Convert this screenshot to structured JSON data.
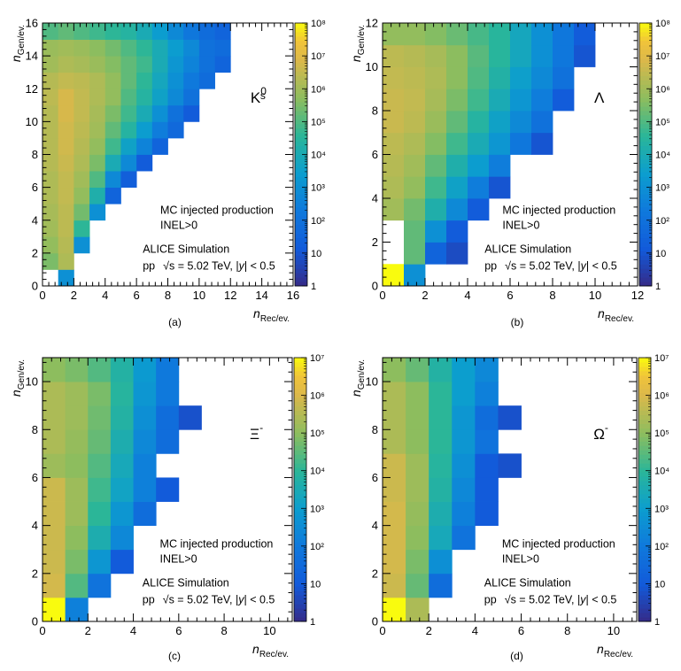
{
  "figure": {
    "common": {
      "annotation_line1": "MC injected production",
      "annotation_line2": "INEL>0",
      "collaboration": "ALICE Simulation",
      "system": "pp",
      "energy_text": "= 5.02 TeV, |",
      "y_symbol": "y",
      "rapidity_text": "| < 0.5",
      "sqrt_s_symbol": "√s",
      "xlabel_main": "n",
      "xlabel_sub": "Rec/ev.",
      "ylabel_main": "n",
      "ylabel_sub": "Gen/ev."
    }
  },
  "chart_data": [
    {
      "type": "heatmap",
      "panel_label": "(a)",
      "particle_main": "K",
      "particle_sub": "s",
      "particle_sup": "0",
      "xlim": [
        0,
        16
      ],
      "ylim": [
        0,
        16
      ],
      "xticks": [
        0,
        2,
        4,
        6,
        8,
        10,
        12,
        14,
        16
      ],
      "yticks": [
        0,
        2,
        4,
        6,
        8,
        10,
        12,
        14,
        16
      ],
      "zlim_exp": [
        0,
        8
      ],
      "zticks": [
        "1",
        "10",
        "10²",
        "10³",
        "10⁴",
        "10⁵",
        "10⁶",
        "10⁷",
        "10⁸"
      ],
      "rows": [
        {
          "y": 0,
          "x0": 1,
          "logz": [
            3.0
          ]
        },
        {
          "y": 1,
          "x0": 0,
          "logz": [
            5.5,
            6.2
          ]
        },
        {
          "y": 2,
          "x0": 0,
          "logz": [
            5.8,
            6.3,
            3.0
          ]
        },
        {
          "y": 3,
          "x0": 0,
          "logz": [
            6.0,
            6.4,
            4.6
          ]
        },
        {
          "y": 4,
          "x0": 0,
          "logz": [
            6.1,
            6.4,
            5.4,
            3.0
          ]
        },
        {
          "y": 5,
          "x0": 0,
          "logz": [
            6.2,
            6.5,
            5.8,
            4.2,
            1.5
          ]
        },
        {
          "y": 6,
          "x0": 0,
          "logz": [
            6.2,
            6.5,
            6.0,
            5.0,
            2.8,
            1.3
          ]
        },
        {
          "y": 7,
          "x0": 0,
          "logz": [
            6.3,
            6.6,
            6.2,
            5.5,
            4.0,
            2.8,
            1.2
          ]
        },
        {
          "y": 8,
          "x0": 0,
          "logz": [
            6.3,
            6.7,
            6.3,
            5.8,
            4.8,
            3.6,
            2.6,
            1.5
          ]
        },
        {
          "y": 9,
          "x0": 0,
          "logz": [
            6.3,
            6.7,
            6.4,
            6.0,
            5.2,
            4.4,
            3.4,
            2.4,
            1.7
          ]
        },
        {
          "y": 10,
          "x0": 0,
          "logz": [
            6.3,
            6.8,
            6.5,
            6.1,
            5.5,
            4.8,
            4.0,
            3.0,
            2.0,
            1.2
          ]
        },
        {
          "y": 11,
          "x0": 0,
          "logz": [
            6.4,
            6.8,
            6.5,
            6.2,
            5.8,
            5.0,
            4.4,
            3.6,
            2.8,
            2.0
          ]
        },
        {
          "y": 12,
          "x0": 0,
          "logz": [
            6.3,
            6.5,
            6.4,
            6.2,
            5.8,
            5.2,
            4.6,
            3.8,
            3.0,
            2.3,
            1.8
          ]
        },
        {
          "y": 13,
          "x0": 0,
          "logz": [
            6.0,
            6.2,
            6.1,
            5.9,
            5.6,
            5.2,
            4.8,
            4.0,
            3.2,
            2.6,
            2.0,
            1.5
          ]
        },
        {
          "y": 14,
          "x0": 0,
          "logz": [
            5.9,
            6.0,
            5.9,
            5.7,
            5.4,
            5.0,
            4.6,
            4.0,
            3.4,
            2.8,
            2.0,
            1.8
          ]
        },
        {
          "y": 15,
          "x0": 0,
          "logz": [
            5.0,
            5.2,
            5.0,
            4.8,
            4.6,
            4.4,
            4.0,
            3.4,
            2.8,
            2.2,
            1.8,
            1.5
          ]
        }
      ]
    },
    {
      "type": "heatmap",
      "panel_label": "(b)",
      "particle_main": "Λ",
      "particle_sub": "",
      "particle_sup": "",
      "xlim": [
        0,
        12
      ],
      "ylim": [
        0,
        12
      ],
      "xticks": [
        0,
        2,
        4,
        6,
        8,
        10,
        12
      ],
      "yticks": [
        0,
        2,
        4,
        6,
        8,
        10,
        12
      ],
      "zlim_exp": [
        0,
        8
      ],
      "zticks": [
        "1",
        "10",
        "10²",
        "10³",
        "10⁴",
        "10⁵",
        "10⁶",
        "10⁷",
        "10⁸"
      ],
      "rows": [
        {
          "y": 0,
          "x0": 0,
          "logz": [
            8.0,
            3.0
          ]
        },
        {
          "y": 1,
          "x0": 1,
          "logz": [
            5.2,
            1.5,
            0.8
          ]
        },
        {
          "y": 2,
          "x0": 1,
          "logz": [
            5.2,
            3.0,
            1.2
          ]
        },
        {
          "y": 3,
          "x0": 0,
          "logz": [
            6.0,
            5.4,
            4.2,
            2.8,
            1.2
          ]
        },
        {
          "y": 4,
          "x0": 0,
          "logz": [
            6.2,
            5.8,
            4.8,
            3.6,
            2.4,
            1.0
          ]
        },
        {
          "y": 5,
          "x0": 0,
          "logz": [
            6.3,
            6.0,
            5.2,
            4.2,
            3.4,
            2.4
          ]
        },
        {
          "y": 6,
          "x0": 0,
          "logz": [
            6.4,
            6.2,
            5.6,
            4.8,
            4.0,
            3.2,
            2.2,
            1.0
          ]
        },
        {
          "y": 7,
          "x0": 0,
          "logz": [
            6.6,
            6.4,
            5.9,
            5.2,
            4.4,
            3.6,
            2.8,
            2.0
          ]
        },
        {
          "y": 8,
          "x0": 0,
          "logz": [
            6.6,
            6.5,
            6.1,
            5.5,
            4.8,
            4.0,
            3.2,
            2.4,
            1.2
          ]
        },
        {
          "y": 9,
          "x0": 0,
          "logz": [
            6.5,
            6.4,
            6.2,
            5.7,
            5.0,
            4.3,
            3.5,
            2.8,
            2.0
          ]
        },
        {
          "y": 10,
          "x0": 0,
          "logz": [
            6.4,
            6.3,
            6.1,
            5.7,
            5.1,
            4.5,
            3.8,
            3.0,
            2.2,
            1.0
          ]
        },
        {
          "y": 11,
          "x0": 0,
          "logz": [
            5.8,
            5.8,
            5.6,
            5.3,
            4.9,
            4.5,
            3.8,
            3.0,
            2.2,
            1.2
          ]
        }
      ]
    },
    {
      "type": "heatmap",
      "panel_label": "(c)",
      "particle_main": "Ξ",
      "particle_sub": "",
      "particle_sup": "-",
      "xlim": [
        0,
        11
      ],
      "ylim": [
        0,
        11
      ],
      "xticks": [
        0,
        2,
        4,
        6,
        8,
        10
      ],
      "yticks": [
        0,
        2,
        4,
        6,
        8,
        10
      ],
      "zlim_exp": [
        0,
        7
      ],
      "zticks": [
        "1",
        "10",
        "10²",
        "10³",
        "10⁴",
        "10⁵",
        "10⁶",
        "10⁷"
      ],
      "rows": [
        {
          "y": 0,
          "x0": 0,
          "logz": [
            7.0,
            2.2
          ]
        },
        {
          "y": 1,
          "x0": 0,
          "logz": [
            5.9,
            4.4,
            1.8
          ]
        },
        {
          "y": 2,
          "x0": 0,
          "logz": [
            5.8,
            4.8,
            2.8,
            1.0
          ]
        },
        {
          "y": 3,
          "x0": 0,
          "logz": [
            5.8,
            5.0,
            3.6,
            2.4
          ]
        },
        {
          "y": 4,
          "x0": 0,
          "logz": [
            5.8,
            5.2,
            4.0,
            2.8,
            1.6
          ]
        },
        {
          "y": 5,
          "x0": 0,
          "logz": [
            5.8,
            5.2,
            4.2,
            3.2,
            2.2,
            1.0
          ]
        },
        {
          "y": 6,
          "x0": 0,
          "logz": [
            5.2,
            5.0,
            4.4,
            3.4,
            2.2
          ]
        },
        {
          "y": 7,
          "x0": 0,
          "logz": [
            5.4,
            5.1,
            4.6,
            3.6,
            2.4,
            1.6
          ]
        },
        {
          "y": 8,
          "x0": 0,
          "logz": [
            5.4,
            5.2,
            4.7,
            3.8,
            2.6,
            1.6,
            0.8
          ]
        },
        {
          "y": 9,
          "x0": 0,
          "logz": [
            5.4,
            5.2,
            4.8,
            3.9,
            2.8,
            2.0
          ]
        },
        {
          "y": 10,
          "x0": 0,
          "logz": [
            5.0,
            4.8,
            4.4,
            3.8,
            2.9,
            2.0
          ]
        }
      ]
    },
    {
      "type": "heatmap",
      "panel_label": "(d)",
      "particle_main": "Ω",
      "particle_sub": "",
      "particle_sup": "-",
      "xlim": [
        0,
        11
      ],
      "ylim": [
        0,
        11
      ],
      "xticks": [
        0,
        2,
        4,
        6,
        8,
        10
      ],
      "yticks": [
        0,
        2,
        4,
        6,
        8,
        10
      ],
      "zlim_exp": [
        0,
        7
      ],
      "zticks": [
        "1",
        "10",
        "10²",
        "10³",
        "10⁴",
        "10⁵",
        "10⁶",
        "10⁷"
      ],
      "rows": [
        {
          "y": 0,
          "x0": 0,
          "logz": [
            7.0,
            5.4
          ]
        },
        {
          "y": 1,
          "x0": 0,
          "logz": [
            5.8,
            4.6,
            1.6
          ]
        },
        {
          "y": 2,
          "x0": 0,
          "logz": [
            5.9,
            4.8,
            2.6
          ]
        },
        {
          "y": 3,
          "x0": 0,
          "logz": [
            5.9,
            5.0,
            3.4,
            1.8
          ]
        },
        {
          "y": 4,
          "x0": 0,
          "logz": [
            5.9,
            5.1,
            3.6,
            2.2,
            1.0
          ]
        },
        {
          "y": 5,
          "x0": 0,
          "logz": [
            5.8,
            5.2,
            3.8,
            2.4,
            1.0
          ]
        },
        {
          "y": 6,
          "x0": 0,
          "logz": [
            5.8,
            5.2,
            3.9,
            2.6,
            1.0,
            0.8
          ]
        },
        {
          "y": 7,
          "x0": 0,
          "logz": [
            5.4,
            5.0,
            4.0,
            2.8,
            1.8
          ]
        },
        {
          "y": 8,
          "x0": 0,
          "logz": [
            5.4,
            5.0,
            4.0,
            2.8,
            1.6,
            0.8
          ]
        },
        {
          "y": 9,
          "x0": 0,
          "logz": [
            5.4,
            5.0,
            4.0,
            3.0,
            2.2
          ]
        },
        {
          "y": 10,
          "x0": 0,
          "logz": [
            5.0,
            4.6,
            3.8,
            3.0,
            2.4
          ]
        }
      ]
    }
  ]
}
